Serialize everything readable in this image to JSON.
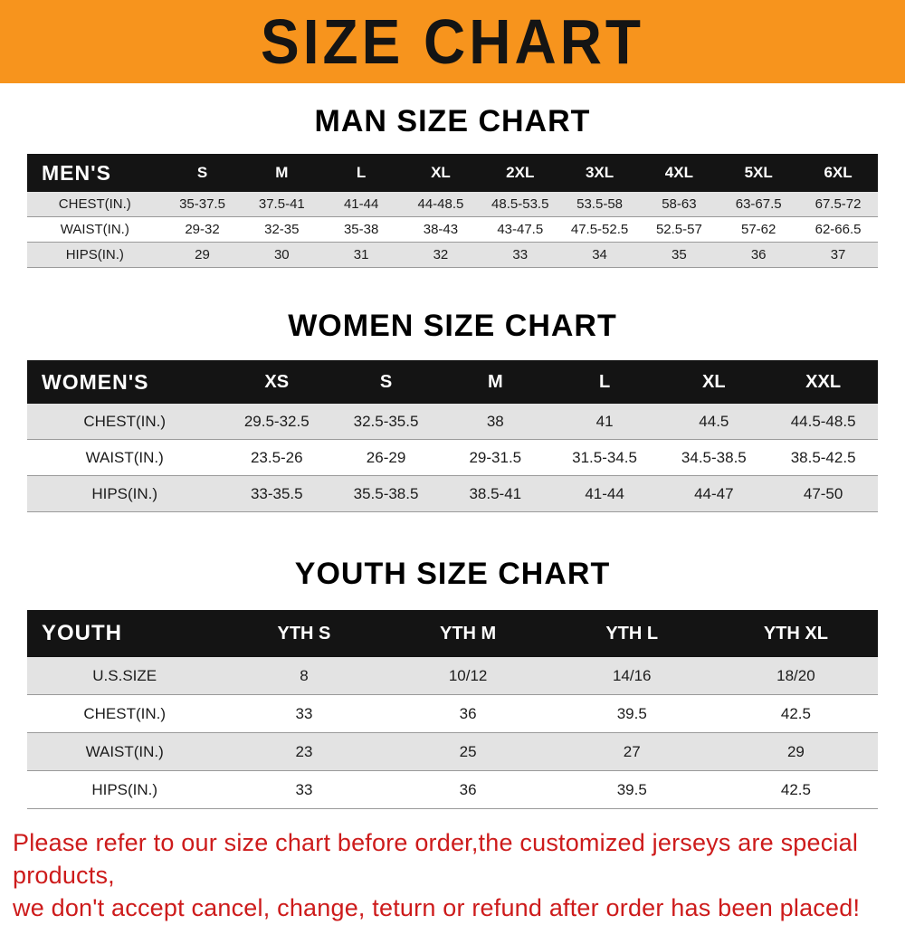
{
  "banner": {
    "title": "SIZE CHART"
  },
  "colors": {
    "banner_bg": "#f7941d",
    "table_header_bg": "#141414",
    "row_alt_bg": "#e3e3e3",
    "footer_text": "#cd1b1b"
  },
  "footer": {
    "line1": "Please refer to our size chart before order,the customized jerseys are special products,",
    "line2": "we don't accept cancel, change, teturn or refund after order has been placed!"
  },
  "chart_data": [
    {
      "type": "table",
      "title": "MAN SIZE CHART",
      "header": [
        "MEN'S",
        "S",
        "M",
        "L",
        "XL",
        "2XL",
        "3XL",
        "4XL",
        "5XL",
        "6XL"
      ],
      "rows": [
        [
          "CHEST(IN.)",
          "35-37.5",
          "37.5-41",
          "41-44",
          "44-48.5",
          "48.5-53.5",
          "53.5-58",
          "58-63",
          "63-67.5",
          "67.5-72"
        ],
        [
          "WAIST(IN.)",
          "29-32",
          "32-35",
          "35-38",
          "38-43",
          "43-47.5",
          "47.5-52.5",
          "52.5-57",
          "57-62",
          "62-66.5"
        ],
        [
          "HIPS(IN.)",
          "29",
          "30",
          "31",
          "32",
          "33",
          "34",
          "35",
          "36",
          "37"
        ]
      ]
    },
    {
      "type": "table",
      "title": "WOMEN SIZE CHART",
      "header": [
        "WOMEN'S",
        "XS",
        "S",
        "M",
        "L",
        "XL",
        "XXL"
      ],
      "rows": [
        [
          "CHEST(IN.)",
          "29.5-32.5",
          "32.5-35.5",
          "38",
          "41",
          "44.5",
          "44.5-48.5"
        ],
        [
          "WAIST(IN.)",
          "23.5-26",
          "26-29",
          "29-31.5",
          "31.5-34.5",
          "34.5-38.5",
          "38.5-42.5"
        ],
        [
          "HIPS(IN.)",
          "33-35.5",
          "35.5-38.5",
          "38.5-41",
          "41-44",
          "44-47",
          "47-50"
        ]
      ]
    },
    {
      "type": "table",
      "title": "YOUTH SIZE CHART",
      "header": [
        "YOUTH",
        "YTH S",
        "YTH M",
        "YTH L",
        "YTH XL"
      ],
      "rows": [
        [
          "U.S.SIZE",
          "8",
          "10/12",
          "14/16",
          "18/20"
        ],
        [
          "CHEST(IN.)",
          "33",
          "36",
          "39.5",
          "42.5"
        ],
        [
          "WAIST(IN.)",
          "23",
          "25",
          "27",
          "29"
        ],
        [
          "HIPS(IN.)",
          "33",
          "36",
          "39.5",
          "42.5"
        ]
      ]
    }
  ]
}
